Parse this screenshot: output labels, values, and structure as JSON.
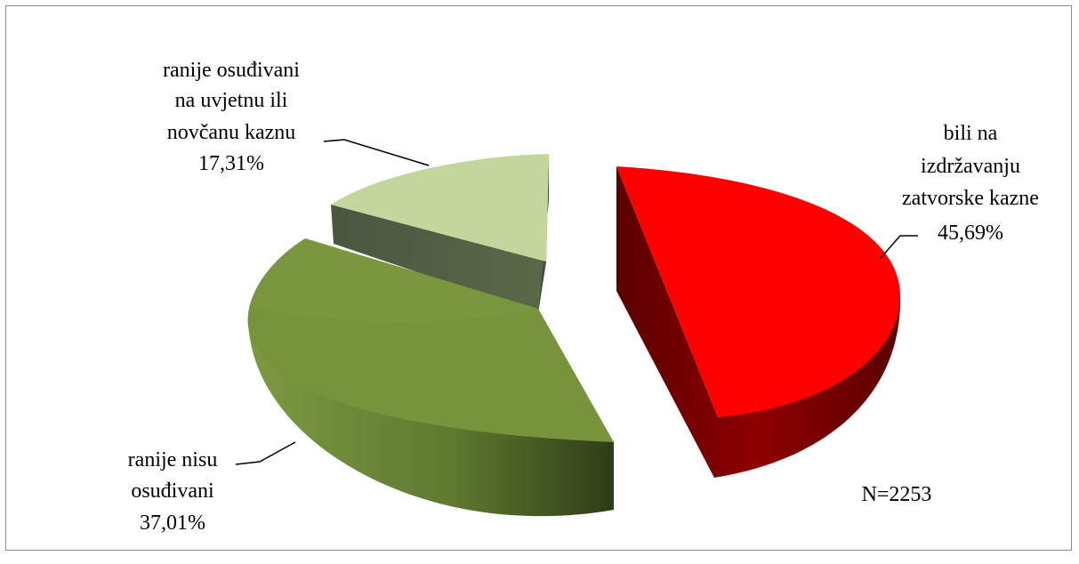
{
  "chart_data": {
    "type": "pie",
    "style": "3d-exploded",
    "slices": [
      {
        "label_lines": [
          "bili na",
          "izdržavanju",
          "zatvorske kazne"
        ],
        "value": 45.69,
        "value_label": "45,69%",
        "color": "#ff0000",
        "side_color": "#7a0000"
      },
      {
        "label_lines": [
          "ranije nisu",
          "osuđivani"
        ],
        "value": 37.01,
        "value_label": "37,01%",
        "color": "#77933c",
        "side_color": "#4f6328"
      },
      {
        "label_lines": [
          "ranije osuđivani",
          "na uvjetnu ili",
          "novčanu kaznu"
        ],
        "value": 17.31,
        "value_label": "17,31%",
        "color": "#c3d69b",
        "side_color": "#4f5b3d"
      }
    ],
    "annotation": "N=2253",
    "legend": "none"
  }
}
